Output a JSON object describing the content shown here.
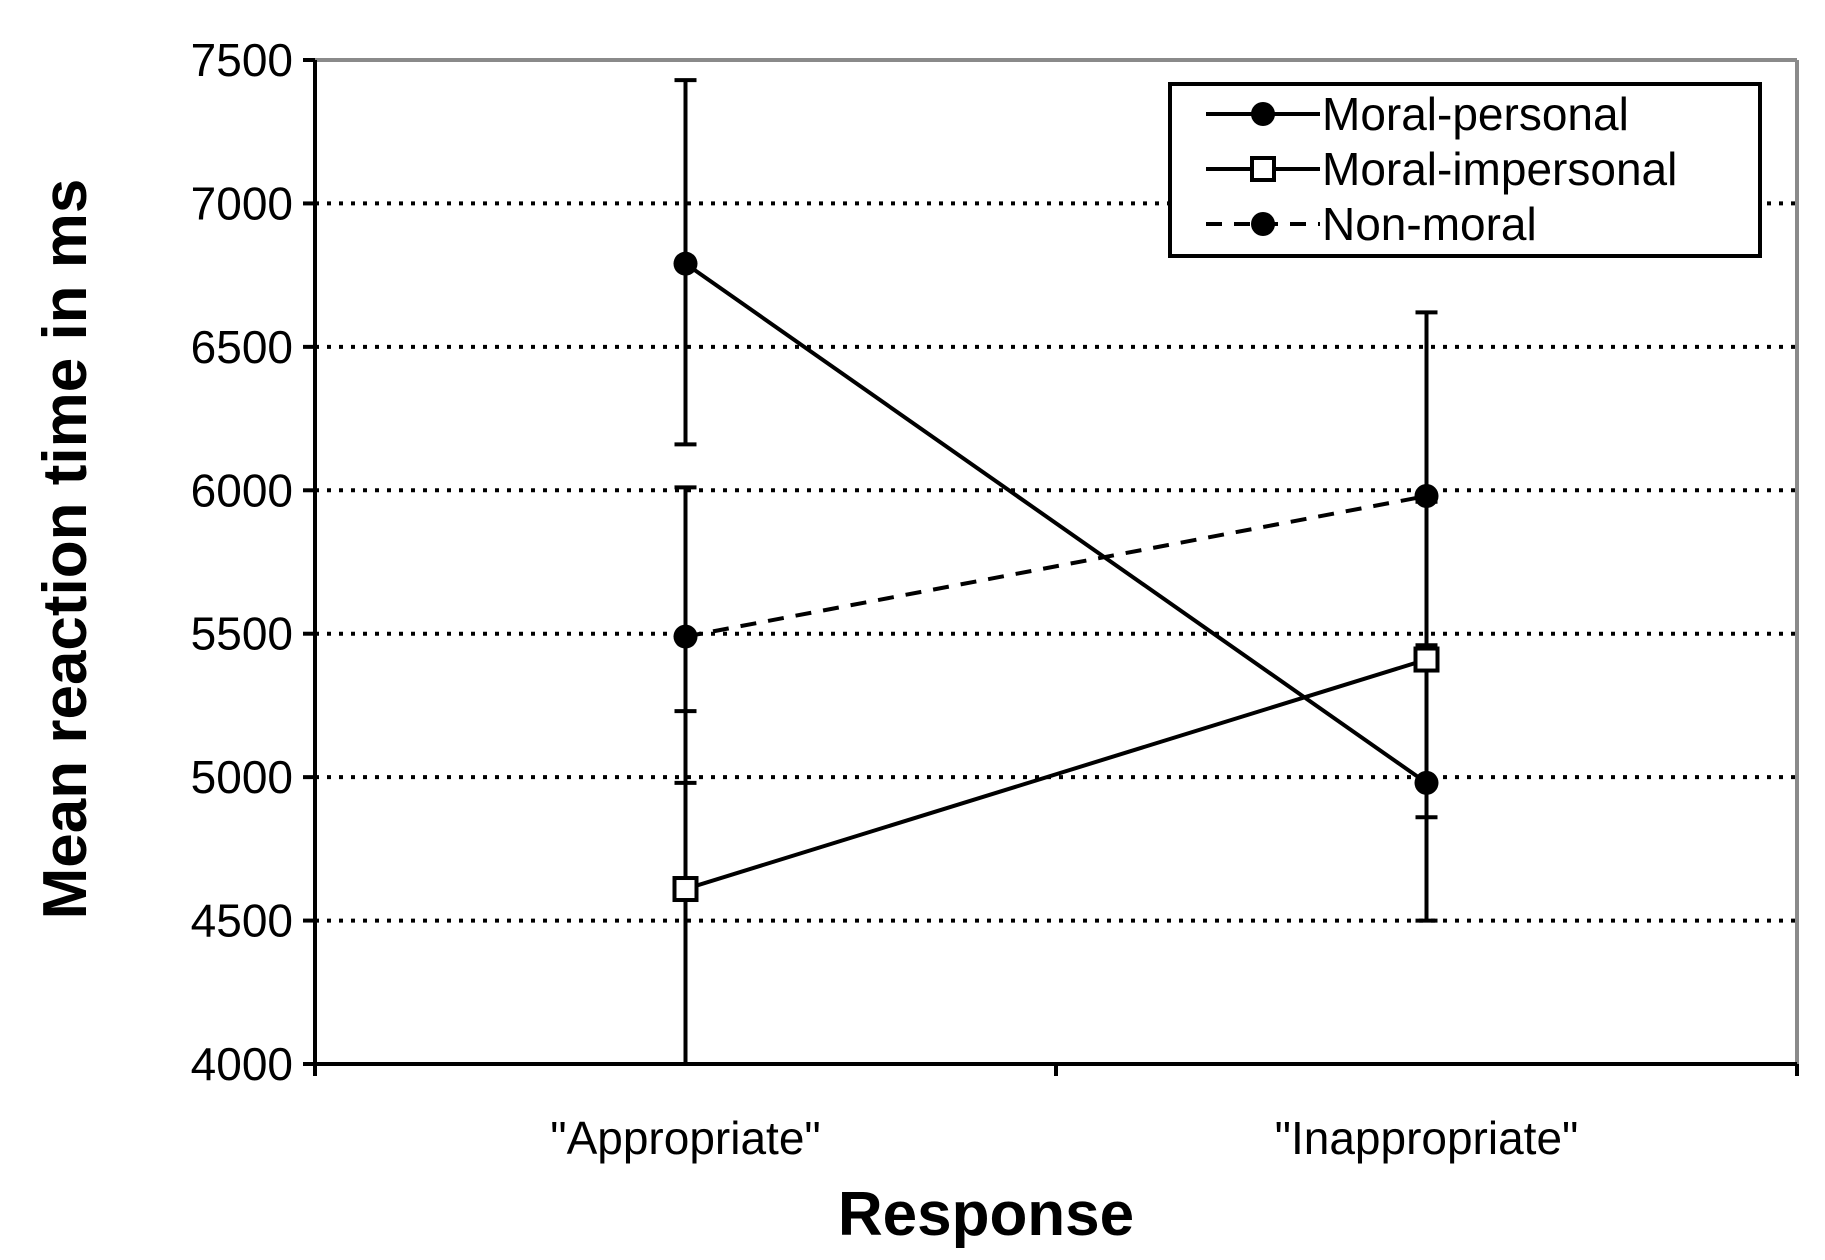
{
  "chart_data": {
    "type": "line",
    "title": "",
    "xlabel": "Response",
    "ylabel": "Mean reaction time in ms",
    "categories": [
      "\"Appropriate\"",
      "\"Inappropriate\""
    ],
    "ylim": [
      4000,
      7500
    ],
    "yticks": [
      4000,
      4500,
      5000,
      5500,
      6000,
      6500,
      7000,
      7500
    ],
    "grid": "horizontal dotted",
    "legend_position": "top-right",
    "series": [
      {
        "name": "Moral-personal",
        "marker": "filled-circle",
        "line_style": "solid",
        "values": [
          6790,
          4980
        ],
        "error_low": [
          6160,
          4500
        ],
        "error_high": [
          7430,
          5460
        ]
      },
      {
        "name": "Moral-impersonal",
        "marker": "open-square",
        "line_style": "solid",
        "values": [
          4610,
          5410
        ],
        "error_low": [
          4000,
          4860
        ],
        "error_high": [
          5230,
          5960
        ]
      },
      {
        "name": "Non-moral",
        "marker": "filled-circle",
        "line_style": "dashed",
        "values": [
          5490,
          5980
        ],
        "error_low": [
          4980,
          5380
        ],
        "error_high": [
          6010,
          6620
        ]
      }
    ]
  }
}
